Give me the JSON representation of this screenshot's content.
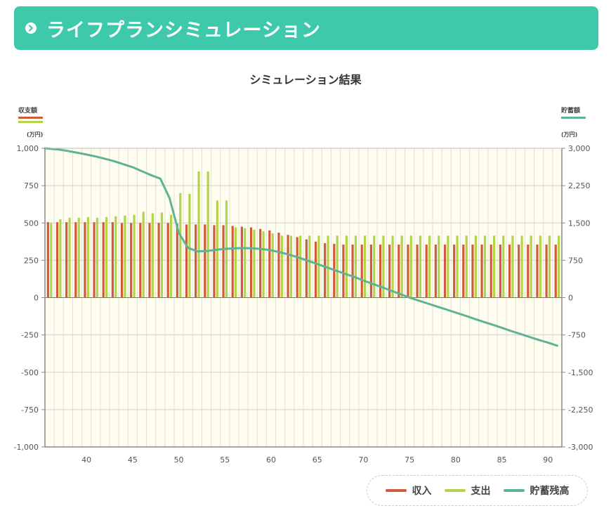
{
  "header": {
    "title": "ライフプランシミュレーション",
    "icon": "chevron-right-icon"
  },
  "colors": {
    "banner": "#3ec9ab",
    "income": "#d25a3c",
    "expense": "#b3d44a",
    "savings": "#5fb394",
    "plot_bg": "#fffdf0"
  },
  "chart_data": {
    "type": "bar",
    "title": "シミュレーション結果",
    "left_axis": {
      "label": "収支額",
      "unit": "(万円)",
      "ylim": [
        -1000,
        1000
      ],
      "ticks": [
        "1,000",
        "750",
        "500",
        "250",
        "0",
        "-250",
        "-500",
        "-750",
        "-1,000"
      ]
    },
    "right_axis": {
      "label": "貯蓄額",
      "unit": "(万円)",
      "ylim": [
        -3000,
        3000
      ],
      "ticks": [
        "3,000",
        "2,250",
        "1,500",
        "750",
        "0",
        "-750",
        "-1,500",
        "-2,250",
        "-3,000"
      ]
    },
    "x_ticks": [
      "40",
      "45",
      "50",
      "55",
      "60",
      "65",
      "70",
      "75",
      "80",
      "85",
      "90"
    ],
    "x_ages": [
      36,
      37,
      38,
      39,
      40,
      41,
      42,
      43,
      44,
      45,
      46,
      47,
      48,
      49,
      50,
      51,
      52,
      53,
      54,
      55,
      56,
      57,
      58,
      59,
      60,
      61,
      62,
      63,
      64,
      65,
      66,
      67,
      68,
      69,
      70,
      71,
      72,
      73,
      74,
      75,
      76,
      77,
      78,
      79,
      80,
      81,
      82,
      83,
      84,
      85,
      86,
      87,
      88,
      89,
      90,
      91
    ],
    "series": [
      {
        "name": "収入",
        "type": "bar",
        "axis": "left",
        "values": [
          505,
          505,
          505,
          505,
          505,
          505,
          505,
          505,
          500,
          500,
          500,
          500,
          500,
          500,
          495,
          490,
          490,
          490,
          485,
          485,
          480,
          475,
          470,
          460,
          450,
          435,
          420,
          405,
          390,
          375,
          365,
          360,
          355,
          355,
          355,
          355,
          355,
          355,
          355,
          355,
          355,
          355,
          355,
          355,
          355,
          355,
          355,
          355,
          355,
          355,
          355,
          355,
          355,
          355,
          355,
          355
        ]
      },
      {
        "name": "支出",
        "type": "bar",
        "axis": "left",
        "values": [
          500,
          525,
          535,
          535,
          540,
          535,
          540,
          545,
          550,
          555,
          575,
          565,
          570,
          555,
          700,
          695,
          845,
          845,
          650,
          650,
          470,
          465,
          455,
          445,
          430,
          415,
          415,
          415,
          415,
          415,
          415,
          415,
          415,
          415,
          415,
          415,
          415,
          415,
          415,
          415,
          415,
          415,
          415,
          415,
          415,
          415,
          415,
          415,
          415,
          415,
          415,
          415,
          415,
          415,
          415,
          415
        ]
      },
      {
        "name": "貯蓄残高",
        "type": "line",
        "axis": "right",
        "values": [
          3000,
          2975,
          2945,
          2910,
          2875,
          2835,
          2790,
          2740,
          2680,
          2620,
          2540,
          2460,
          2390,
          2000,
          1300,
          1000,
          930,
          935,
          960,
          980,
          990,
          995,
          990,
          975,
          950,
          910,
          860,
          805,
          740,
          675,
          610,
          545,
          480,
          415,
          345,
          275,
          210,
          140,
          70,
          0,
          -60,
          -120,
          -180,
          -240,
          -300,
          -360,
          -425,
          -485,
          -545,
          -605,
          -670,
          -730,
          -790,
          -850,
          -905,
          -965
        ]
      }
    ],
    "legend": [
      "収入",
      "支出",
      "貯蓄残高"
    ],
    "legend_position": "bottom-right",
    "grid": true
  }
}
